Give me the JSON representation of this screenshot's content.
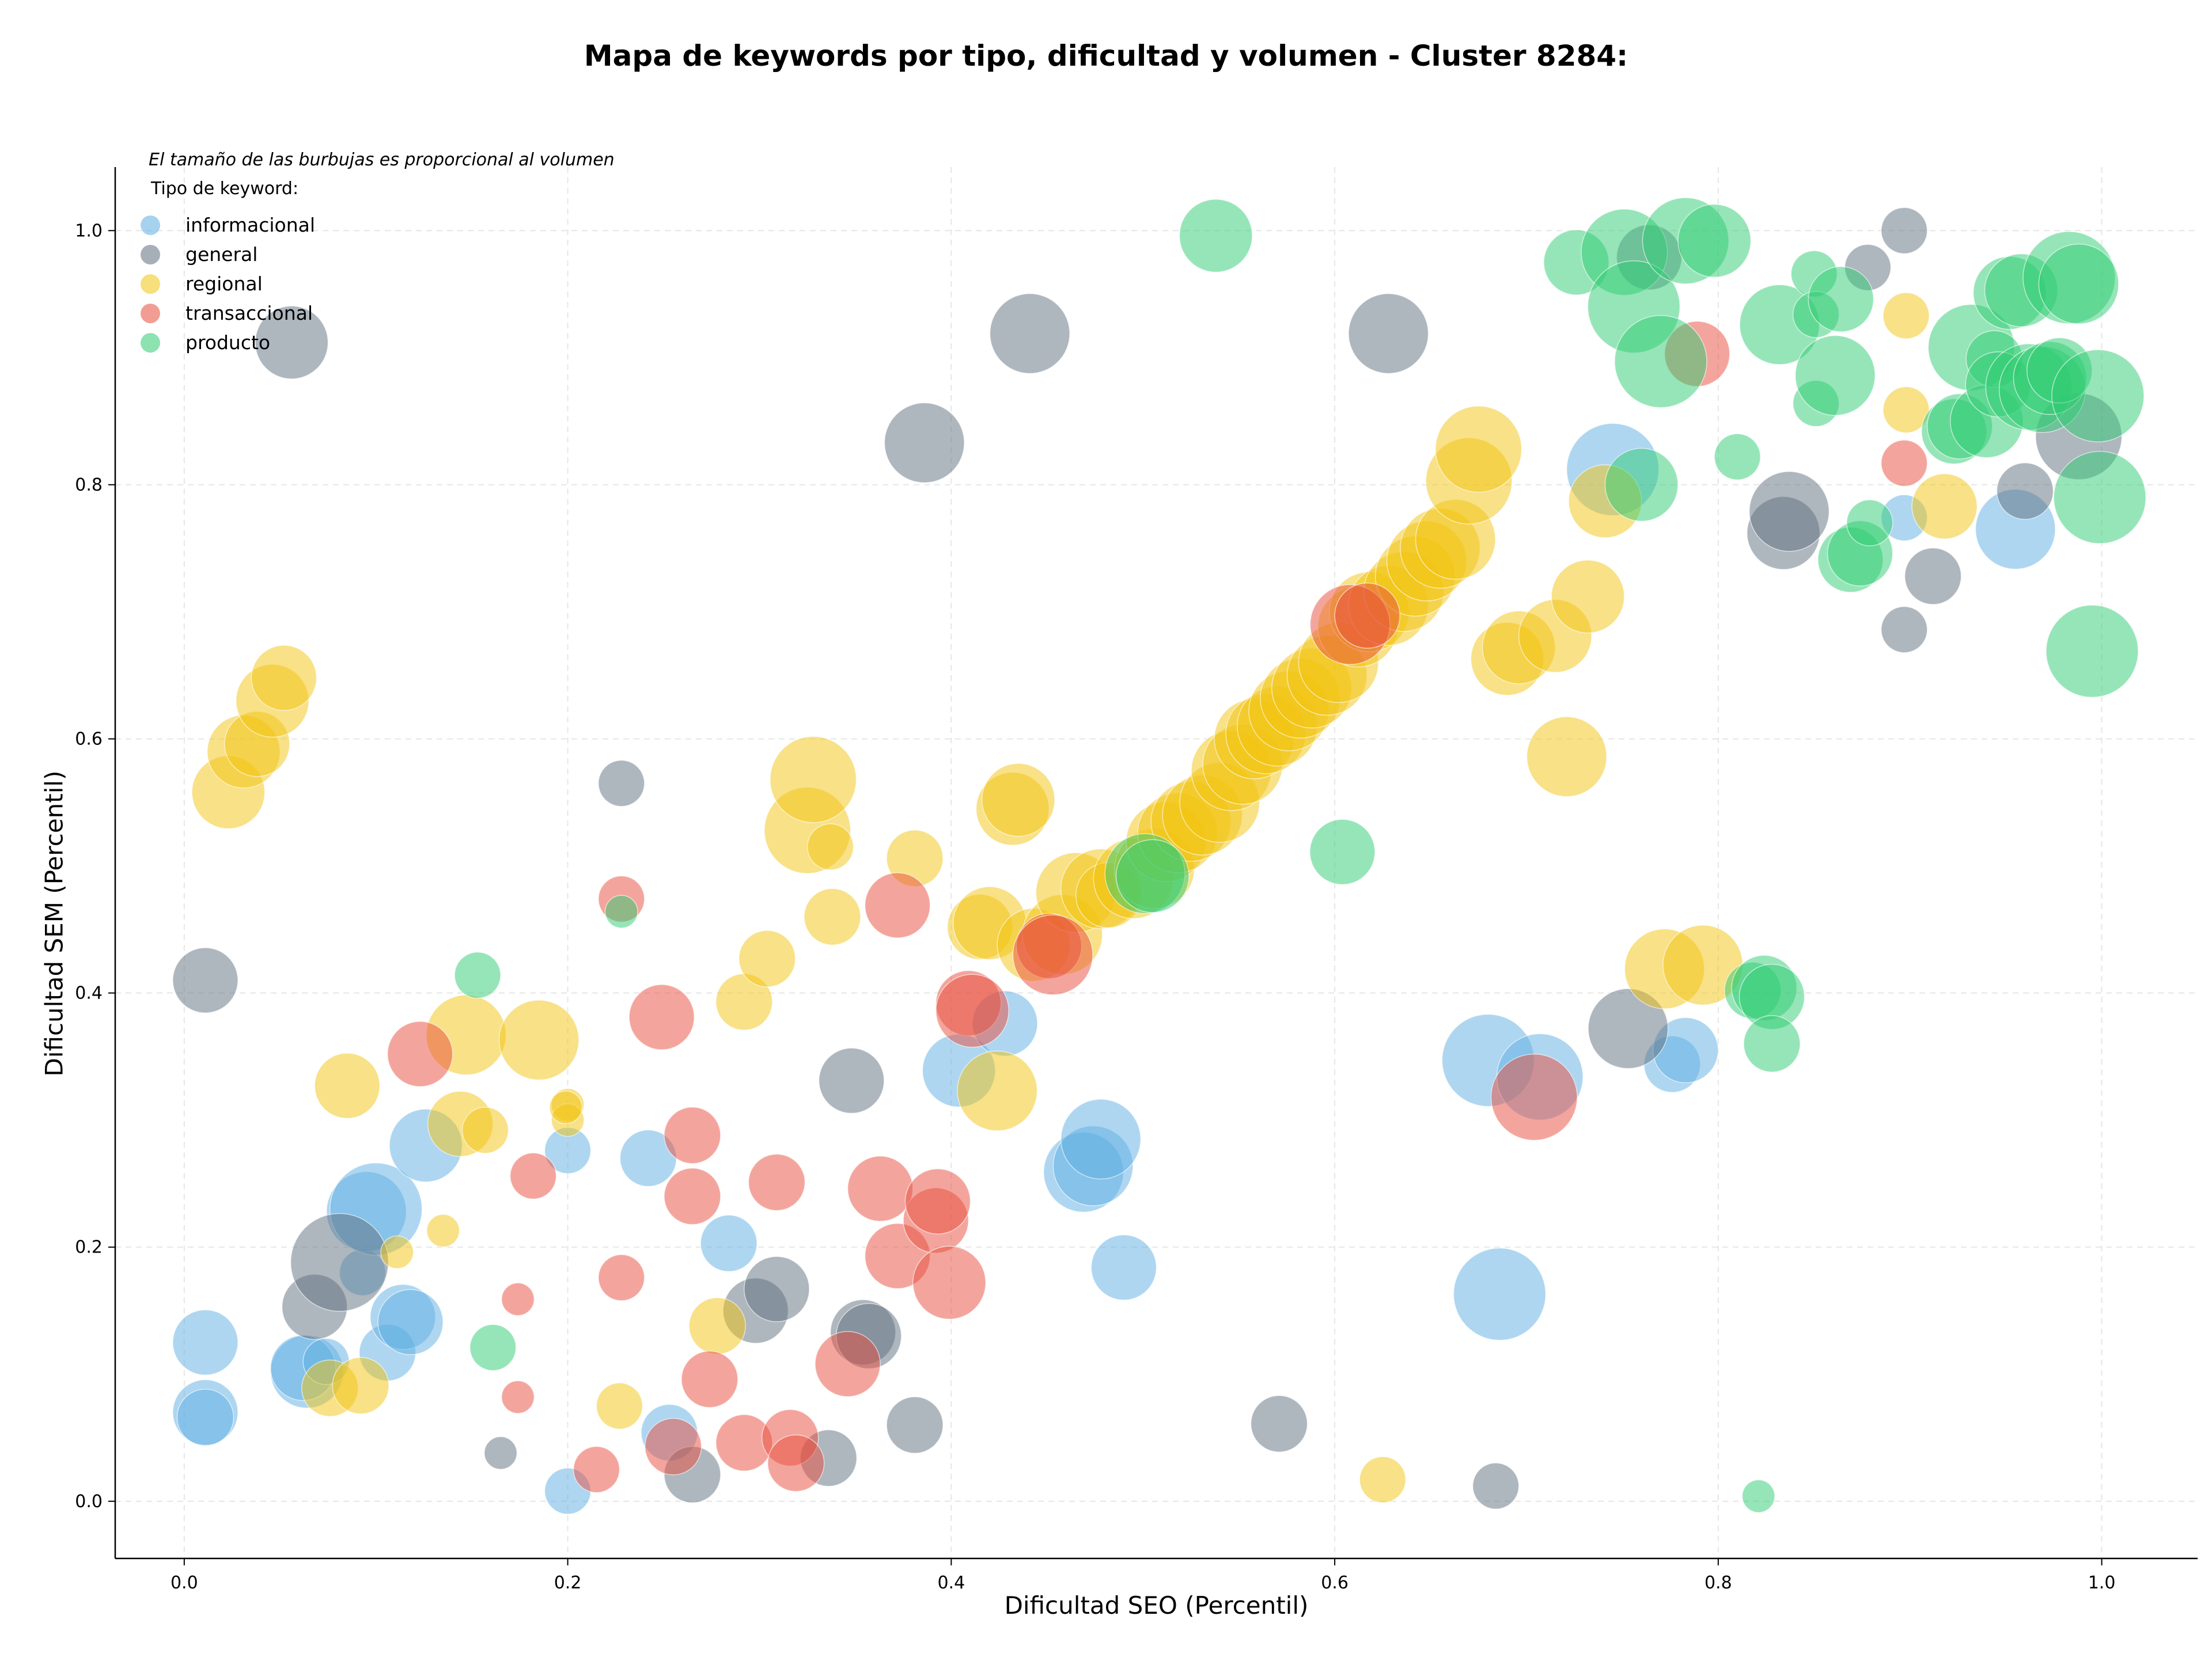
{
  "chart_data": {
    "type": "scatter",
    "title": "Mapa de keywords por tipo, dificultad y volumen - Cluster 8284:",
    "xlabel": "Dificultad SEO (Percentil)",
    "ylabel": "Dificultad SEM (Percentil)",
    "size_note": "El tamaño de las burbujas es proporcional al volumen",
    "legend_title": "Tipo de keyword:",
    "legend_position": "top-left",
    "grid": true,
    "xlim": [
      -0.036,
      1.05
    ],
    "ylim": [
      -0.045,
      1.05
    ],
    "xticks": [
      "0.0",
      "0.2",
      "0.4",
      "0.6",
      "0.8",
      "1.0"
    ],
    "yticks": [
      "0.0",
      "0.2",
      "0.4",
      "0.6",
      "0.8",
      "1.0"
    ],
    "series": [
      {
        "name": "informacional",
        "color": "#5DADE2",
        "points": [
          [
            0.011,
            0.125,
            2
          ],
          [
            0.011,
            0.07,
            2
          ],
          [
            0.011,
            0.066,
            1.5
          ],
          [
            0.064,
            0.102,
            2.5
          ],
          [
            0.062,
            0.105,
            2
          ],
          [
            0.074,
            0.11,
            1
          ],
          [
            0.093,
            0.18,
            1
          ],
          [
            0.095,
            0.228,
            3
          ],
          [
            0.1,
            0.23,
            4
          ],
          [
            0.106,
            0.117,
            1.5
          ],
          [
            0.114,
            0.145,
            2
          ],
          [
            0.118,
            0.141,
            2
          ],
          [
            0.126,
            0.28,
            2.5
          ],
          [
            0.2,
            0.276,
            1
          ],
          [
            0.2,
            0.008,
            1
          ],
          [
            0.242,
            0.27,
            1.5
          ],
          [
            0.253,
            0.054,
            1.5
          ],
          [
            0.284,
            0.203,
            1.5
          ],
          [
            0.404,
            0.339,
            2.5
          ],
          [
            0.428,
            0.376,
            2
          ],
          [
            0.469,
            0.259,
            3
          ],
          [
            0.474,
            0.264,
            3
          ],
          [
            0.478,
            0.285,
            3
          ],
          [
            0.49,
            0.184,
            2
          ],
          [
            0.68,
            0.347,
            4
          ],
          [
            0.686,
            0.163,
            4
          ],
          [
            0.707,
            0.334,
            3.5
          ],
          [
            0.745,
            0.812,
            4
          ],
          [
            0.776,
            0.344,
            1.5
          ],
          [
            0.783,
            0.355,
            2
          ],
          [
            0.897,
            0.774,
            1
          ],
          [
            0.955,
            0.765,
            3
          ]
        ]
      },
      {
        "name": "general",
        "color": "#5D6D7E",
        "points": [
          [
            0.011,
            0.41,
            2
          ],
          [
            0.056,
            0.912,
            2.5
          ],
          [
            0.068,
            0.153,
            2
          ],
          [
            0.081,
            0.188,
            4.5
          ],
          [
            0.165,
            0.038,
            0.5
          ],
          [
            0.228,
            0.565,
            1
          ],
          [
            0.265,
            0.021,
            1.5
          ],
          [
            0.298,
            0.15,
            2
          ],
          [
            0.309,
            0.167,
            2
          ],
          [
            0.336,
            0.034,
            1.5
          ],
          [
            0.348,
            0.331,
            2
          ],
          [
            0.354,
            0.133,
            2
          ],
          [
            0.357,
            0.13,
            2
          ],
          [
            0.381,
            0.06,
            1.5
          ],
          [
            0.386,
            0.833,
            3
          ],
          [
            0.441,
            0.919,
            3
          ],
          [
            0.571,
            0.061,
            1.5
          ],
          [
            0.628,
            0.919,
            3
          ],
          [
            0.684,
            0.012,
            1
          ],
          [
            0.753,
            0.372,
            3
          ],
          [
            0.764,
            0.979,
            2
          ],
          [
            0.834,
            0.762,
            2.5
          ],
          [
            0.837,
            0.779,
            3
          ],
          [
            0.878,
            0.971,
            1
          ],
          [
            0.897,
            1.0,
            1
          ],
          [
            0.897,
            0.686,
            1
          ],
          [
            0.912,
            0.728,
            1.5
          ],
          [
            0.96,
            0.795,
            1.5
          ],
          [
            0.988,
            0.838,
            3.5
          ]
        ]
      },
      {
        "name": "regional",
        "color": "#F1C40F",
        "points": [
          [
            0.023,
            0.558,
            2.5
          ],
          [
            0.031,
            0.59,
            2.5
          ],
          [
            0.038,
            0.596,
            2
          ],
          [
            0.046,
            0.63,
            2.5
          ],
          [
            0.052,
            0.648,
            2
          ],
          [
            0.076,
            0.089,
            1.5
          ],
          [
            0.085,
            0.327,
            2
          ],
          [
            0.092,
            0.091,
            1.5
          ],
          [
            0.111,
            0.196,
            0.5
          ],
          [
            0.135,
            0.213,
            0.5
          ],
          [
            0.144,
            0.297,
            2
          ],
          [
            0.147,
            0.367,
            3
          ],
          [
            0.157,
            0.292,
            1
          ],
          [
            0.185,
            0.363,
            3
          ],
          [
            0.2,
            0.312,
            0.5
          ],
          [
            0.2,
            0.3,
            0.5
          ],
          [
            0.227,
            0.075,
            1
          ],
          [
            0.278,
            0.138,
            1.5
          ],
          [
            0.292,
            0.393,
            1.5
          ],
          [
            0.304,
            0.427,
            1.5
          ],
          [
            0.325,
            0.528,
            3.5
          ],
          [
            0.328,
            0.568,
            3.5
          ],
          [
            0.337,
            0.515,
            1
          ],
          [
            0.338,
            0.46,
            1.5
          ],
          [
            0.381,
            0.506,
            1.5
          ],
          [
            0.415,
            0.452,
            2
          ],
          [
            0.42,
            0.455,
            2.5
          ],
          [
            0.424,
            0.323,
            3
          ],
          [
            0.432,
            0.545,
            2.5
          ],
          [
            0.435,
            0.552,
            2.5
          ],
          [
            0.443,
            0.438,
            2.5
          ],
          [
            0.458,
            0.446,
            3
          ],
          [
            0.465,
            0.479,
            3
          ],
          [
            0.478,
            0.482,
            3
          ],
          [
            0.482,
            0.477,
            2
          ],
          [
            0.495,
            0.49,
            3
          ],
          [
            0.506,
            0.498,
            3
          ],
          [
            0.512,
            0.519,
            3
          ],
          [
            0.518,
            0.526,
            3
          ],
          [
            0.525,
            0.535,
            3
          ],
          [
            0.531,
            0.54,
            3
          ],
          [
            0.54,
            0.55,
            3
          ],
          [
            0.546,
            0.575,
            3
          ],
          [
            0.552,
            0.58,
            3
          ],
          [
            0.558,
            0.6,
            3
          ],
          [
            0.564,
            0.604,
            3
          ],
          [
            0.57,
            0.61,
            3
          ],
          [
            0.576,
            0.622,
            3
          ],
          [
            0.582,
            0.632,
            3
          ],
          [
            0.588,
            0.64,
            3
          ],
          [
            0.596,
            0.65,
            3
          ],
          [
            0.602,
            0.66,
            3
          ],
          [
            0.612,
            0.688,
            3
          ],
          [
            0.618,
            0.7,
            3
          ],
          [
            0.628,
            0.705,
            3
          ],
          [
            0.636,
            0.716,
            3
          ],
          [
            0.642,
            0.728,
            3
          ],
          [
            0.648,
            0.74,
            3
          ],
          [
            0.655,
            0.75,
            3
          ],
          [
            0.663,
            0.757,
            3
          ],
          [
            0.67,
            0.803,
            3.5
          ],
          [
            0.675,
            0.828,
            3.5
          ],
          [
            0.69,
            0.663,
            2.5
          ],
          [
            0.696,
            0.672,
            2.5
          ],
          [
            0.715,
            0.681,
            2.5
          ],
          [
            0.721,
            0.586,
            3
          ],
          [
            0.732,
            0.712,
            2.5
          ],
          [
            0.741,
            0.787,
            2.5
          ],
          [
            0.772,
            0.419,
            3
          ],
          [
            0.792,
            0.422,
            3
          ],
          [
            0.898,
            0.933,
            1
          ],
          [
            0.898,
            0.859,
            1
          ],
          [
            0.918,
            0.783,
            2
          ],
          [
            0.625,
            0.017,
            1
          ],
          [
            0.199,
            0.31,
            0.5
          ]
        ]
      },
      {
        "name": "transaccional",
        "color": "#E74C3C",
        "points": [
          [
            0.123,
            0.352,
            2
          ],
          [
            0.182,
            0.256,
            1
          ],
          [
            0.174,
            0.082,
            0.5
          ],
          [
            0.174,
            0.159,
            0.5
          ],
          [
            0.215,
            0.025,
            1
          ],
          [
            0.228,
            0.474,
            1
          ],
          [
            0.228,
            0.176,
            1
          ],
          [
            0.249,
            0.381,
            2
          ],
          [
            0.255,
            0.043,
            1.5
          ],
          [
            0.265,
            0.288,
            1.5
          ],
          [
            0.265,
            0.24,
            1.5
          ],
          [
            0.274,
            0.096,
            1.5
          ],
          [
            0.292,
            0.046,
            1.5
          ],
          [
            0.309,
            0.251,
            1.5
          ],
          [
            0.316,
            0.05,
            1.5
          ],
          [
            0.319,
            0.03,
            1.5
          ],
          [
            0.346,
            0.108,
            2
          ],
          [
            0.363,
            0.246,
            2
          ],
          [
            0.372,
            0.193,
            2
          ],
          [
            0.372,
            0.469,
            2
          ],
          [
            0.392,
            0.221,
            2
          ],
          [
            0.393,
            0.236,
            2
          ],
          [
            0.399,
            0.172,
            2.5
          ],
          [
            0.409,
            0.392,
            2
          ],
          [
            0.411,
            0.386,
            2.5
          ],
          [
            0.451,
            0.437,
            2
          ],
          [
            0.453,
            0.43,
            3
          ],
          [
            0.608,
            0.69,
            3
          ],
          [
            0.617,
            0.697,
            2
          ],
          [
            0.704,
            0.318,
            3.5
          ],
          [
            0.789,
            0.903,
            2
          ],
          [
            0.897,
            0.817,
            1
          ]
        ]
      },
      {
        "name": "producto",
        "color": "#2ECC71",
        "points": [
          [
            0.153,
            0.414,
            1
          ],
          [
            0.161,
            0.121,
            1
          ],
          [
            0.228,
            0.464,
            0.5
          ],
          [
            0.501,
            0.494,
            3
          ],
          [
            0.505,
            0.492,
            2.5
          ],
          [
            0.538,
            0.996,
            2.5
          ],
          [
            0.604,
            0.511,
            2
          ],
          [
            0.726,
            0.975,
            2
          ],
          [
            0.751,
            0.983,
            3.5
          ],
          [
            0.756,
            0.94,
            4
          ],
          [
            0.76,
            0.8,
            2.5
          ],
          [
            0.77,
            0.897,
            4
          ],
          [
            0.783,
            0.992,
            3.5
          ],
          [
            0.798,
            0.992,
            2.5
          ],
          [
            0.81,
            0.822,
            1
          ],
          [
            0.818,
            0.402,
            1.5
          ],
          [
            0.821,
            0.004,
            0.5
          ],
          [
            0.824,
            0.404,
            2
          ],
          [
            0.828,
            0.397,
            2
          ],
          [
            0.828,
            0.36,
            1.5
          ],
          [
            0.832,
            0.926,
            3
          ],
          [
            0.85,
            0.966,
            1
          ],
          [
            0.851,
            0.934,
            1
          ],
          [
            0.851,
            0.864,
            1
          ],
          [
            0.861,
            0.886,
            3
          ],
          [
            0.864,
            0.946,
            2
          ],
          [
            0.869,
            0.741,
            2
          ],
          [
            0.874,
            0.746,
            2
          ],
          [
            0.879,
            0.77,
            1
          ],
          [
            0.923,
            0.842,
            2
          ],
          [
            0.926,
            0.846,
            2
          ],
          [
            0.932,
            0.908,
            3.5
          ],
          [
            0.94,
            0.85,
            2.5
          ],
          [
            0.944,
            0.899,
            1.5
          ],
          [
            0.946,
            0.879,
            2
          ],
          [
            0.952,
            0.951,
            2.5
          ],
          [
            0.958,
            0.953,
            2.5
          ],
          [
            0.962,
            0.877,
            3.5
          ],
          [
            0.969,
            0.875,
            3.5
          ],
          [
            0.973,
            0.884,
            2.5
          ],
          [
            0.978,
            0.89,
            2
          ],
          [
            0.983,
            0.963,
            4
          ],
          [
            0.988,
            0.958,
            3
          ],
          [
            0.998,
            0.87,
            4
          ],
          [
            0.999,
            0.79,
            4
          ],
          [
            0.995,
            0.669,
            4
          ]
        ]
      }
    ]
  }
}
